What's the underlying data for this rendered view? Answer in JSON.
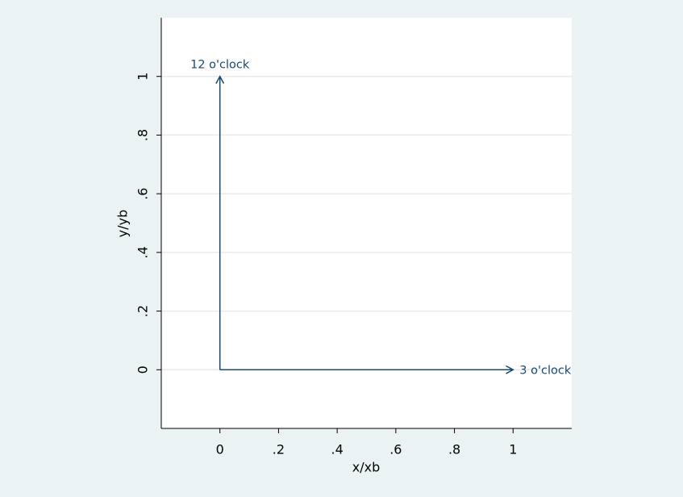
{
  "chart_data": {
    "type": "arrow",
    "xlabel": "x/xb",
    "ylabel": "y/yb",
    "xlim": [
      -0.2,
      1.2
    ],
    "ylim": [
      -0.2,
      1.2
    ],
    "xticks": [
      0,
      {
        "value": 0.2,
        "label": ".2"
      },
      {
        "value": 0.4,
        "label": ".4"
      },
      {
        "value": 0.6,
        "label": ".6"
      },
      {
        "value": 0.8,
        "label": ".8"
      },
      1
    ],
    "yticks": [
      0,
      {
        "value": 0.2,
        "label": ".2"
      },
      {
        "value": 0.4,
        "label": ".4"
      },
      {
        "value": 0.6,
        "label": ".6"
      },
      {
        "value": 0.8,
        "label": ".8"
      },
      1
    ],
    "grid": true,
    "color": "#1a476f",
    "arrows": [
      {
        "x0": 0,
        "y0": 0,
        "x1": 1,
        "y1": 0,
        "label": "3 o'clock",
        "labpos": 3
      },
      {
        "x0": 0,
        "y0": 0,
        "x1": 0,
        "y1": 1,
        "label": "12 o'clock",
        "labpos": 12
      }
    ]
  }
}
